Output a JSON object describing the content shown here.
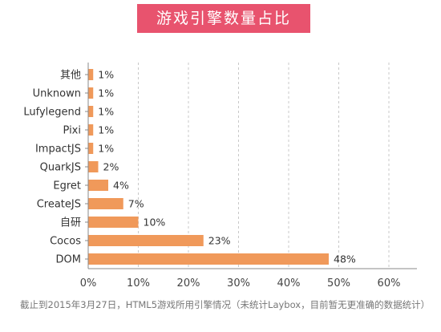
{
  "chart_data": {
    "type": "bar",
    "orientation": "horizontal",
    "title": "游戏引擎数量占比",
    "categories": [
      "其他",
      "Unknown",
      "Lufylegend",
      "Pixi",
      "ImpactJS",
      "QuarkJS",
      "Egret",
      "CreateJS",
      "自研",
      "Cocos",
      "DOM"
    ],
    "values": [
      1,
      1,
      1,
      1,
      1,
      2,
      4,
      7,
      10,
      23,
      48
    ],
    "value_labels": [
      "1%",
      "1%",
      "1%",
      "1%",
      "1%",
      "2%",
      "4%",
      "7%",
      "10%",
      "23%",
      "48%"
    ],
    "x_ticks": [
      "0%",
      "10%",
      "20%",
      "30%",
      "40%",
      "50%",
      "60%"
    ],
    "xlim": [
      0,
      60
    ],
    "grid": "vertical dashed",
    "legend": "none",
    "bar_color": "#f0995a"
  },
  "footnote": "截止到2015年3月27日，HTML5游戏所用引擎情况（未统计Laybox，目前暂无更准确的数据统计）"
}
